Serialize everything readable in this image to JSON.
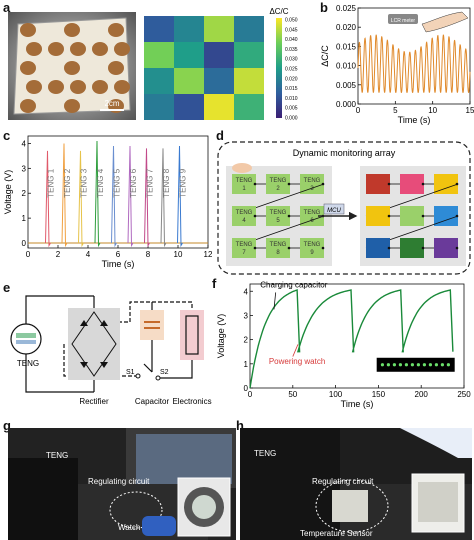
{
  "panel_letters": {
    "a": "a",
    "b": "b",
    "c": "c",
    "d": "d",
    "e": "e",
    "f": "f",
    "g": "g",
    "h": "h"
  },
  "panel_a": {
    "scale_bar": "2cm",
    "heatmap_title": "ΔC/C",
    "colorbar_ticks": [
      "0.050",
      "0.045",
      "0.040",
      "0.035",
      "0.030",
      "0.025",
      "0.020",
      "0.015",
      "0.010",
      "0.005",
      "0.000"
    ],
    "heatmap_grid": [
      [
        0.012,
        0.02,
        0.042,
        0.018
      ],
      [
        0.038,
        0.025,
        0.008,
        0.028
      ],
      [
        0.022,
        0.04,
        0.015,
        0.045
      ],
      [
        0.018,
        0.01,
        0.048,
        0.03
      ]
    ]
  },
  "chart_b": {
    "type": "line",
    "xlabel": "Time (s)",
    "ylabel": "ΔC/C",
    "xlim": [
      0,
      15
    ],
    "ylim": [
      0,
      0.025
    ],
    "xticks": [
      "0",
      "5",
      "10",
      "15"
    ],
    "yticks": [
      "0.000",
      "0.005",
      "0.010",
      "0.015",
      "0.020",
      "0.025"
    ],
    "inset_label": "LCR meter",
    "line_color": "#e08a2c",
    "cycles": 20,
    "peak": 0.018,
    "trough": 0.003
  },
  "chart_c": {
    "type": "line",
    "xlabel": "Time (s)",
    "ylabel": "Voltage (V)",
    "xlim": [
      0,
      12
    ],
    "ylim": [
      -0.2,
      4.3
    ],
    "xticks": [
      "0",
      "2",
      "4",
      "6",
      "8",
      "10",
      "12"
    ],
    "yticks": [
      "0",
      "1",
      "2",
      "3",
      "4"
    ],
    "series": [
      {
        "name": "TENG 1",
        "x": 1.3,
        "peak": 3.7,
        "color": "#e05a6a"
      },
      {
        "name": "TENG 2",
        "x": 2.4,
        "peak": 4.0,
        "color": "#f0a040"
      },
      {
        "name": "TENG 3",
        "x": 3.5,
        "peak": 3.7,
        "color": "#e6c34a"
      },
      {
        "name": "TENG 4",
        "x": 4.6,
        "peak": 4.1,
        "color": "#2e9e3c"
      },
      {
        "name": "TENG 5",
        "x": 5.7,
        "peak": 3.9,
        "color": "#6a8fd0"
      },
      {
        "name": "TENG 6",
        "x": 6.8,
        "peak": 3.9,
        "color": "#b06ac0"
      },
      {
        "name": "TENG 7",
        "x": 7.9,
        "peak": 3.8,
        "color": "#c24a8a"
      },
      {
        "name": "TENG 8",
        "x": 9.0,
        "peak": 3.8,
        "color": "#888888"
      },
      {
        "name": "TENG 9",
        "x": 10.1,
        "peak": 3.9,
        "color": "#3a7ad0"
      }
    ]
  },
  "panel_d": {
    "title": "Dynamic monitoring array",
    "cell_label": "TENG",
    "cells": [
      "1",
      "2",
      "3",
      "4",
      "5",
      "6",
      "7",
      "8",
      "9"
    ],
    "mcu_label": "MCU",
    "output_colors": [
      "#c0392b",
      "#e74c7a",
      "#f1c40f",
      "#f1c40f",
      "#9ad06a",
      "#2e8bd6",
      "#1f5fa8",
      "#2e7d32",
      "#6a3a9a"
    ]
  },
  "panel_e": {
    "labels": {
      "teng": "TENG",
      "rectifier": "Rectifier",
      "capacitor": "Capacitor",
      "electronics": "Electronics",
      "s1": "S1",
      "s2": "S2"
    }
  },
  "chart_f": {
    "type": "line",
    "xlabel": "Time (s)",
    "ylabel": "Voltage (V)",
    "xlim": [
      0,
      250
    ],
    "ylim": [
      0,
      4.3
    ],
    "xticks": [
      "0",
      "50",
      "100",
      "150",
      "200",
      "250"
    ],
    "yticks": [
      "0",
      "1",
      "2",
      "3",
      "4"
    ],
    "annotation_charging": "Charging capacitor",
    "annotation_powering": "Powering watch",
    "line_color": "#1a8a3a",
    "cycle_starts": [
      0,
      56,
      120,
      178,
      236
    ],
    "peak_times": [
      55,
      118,
      176,
      234
    ]
  },
  "panel_g": {
    "label_teng": "TENG",
    "label_circuit": "Regulating circuit",
    "label_watch": "Watch"
  },
  "panel_h": {
    "label_teng": "TENG",
    "label_circuit": "Regulating circuit",
    "label_sensor": "Temperature Sensor"
  }
}
